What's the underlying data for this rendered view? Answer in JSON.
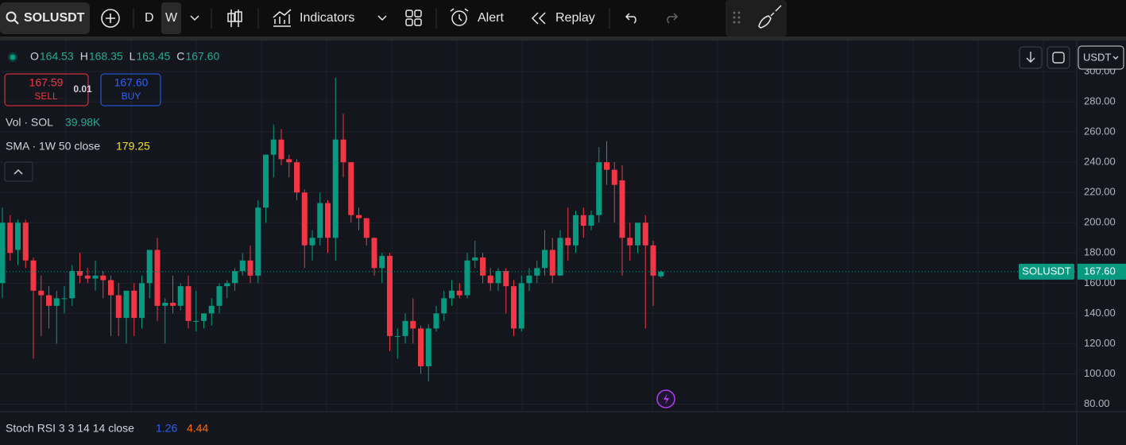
{
  "toolbar": {
    "symbol": "SOLUSDT",
    "intervals": [
      "D",
      "W"
    ],
    "indicators": "Indicators",
    "alert": "Alert",
    "replay": "Replay"
  },
  "legend": {
    "ohlc": [
      {
        "key": "O",
        "value": "164.53"
      },
      {
        "key": "H",
        "value": "168.35"
      },
      {
        "key": "L",
        "value": "163.45"
      },
      {
        "key": "C",
        "value": "167.60"
      }
    ],
    "sell_price": "167.59",
    "sell": "SELL",
    "quantity": "0.01",
    "buy_price": "167.60",
    "buy": "BUY",
    "volume_label": "Vol · SOL",
    "volume_value": "39.98K",
    "sma_label": "SMA · 1W 50 close",
    "sma_value": "179.25"
  },
  "stoch": {
    "label": "Stoch RSI 3 3 14 14 close",
    "k": "1.26",
    "d": "4.44"
  },
  "currency": "USDT",
  "chart_data": {
    "type": "candlestick",
    "symbol_label": "SOLUSDT",
    "up_color": "#089981",
    "down_color": "#f23645",
    "open": [
      160,
      200,
      182,
      200,
      175,
      155,
      152,
      145,
      150,
      150,
      168,
      165,
      163,
      165,
      162,
      152,
      137,
      155,
      137,
      160,
      182,
      145,
      147,
      145,
      158,
      135,
      135,
      140,
      145,
      158,
      160,
      168,
      175,
      165,
      210,
      245,
      255,
      242,
      240,
      220,
      185,
      190,
      213,
      190,
      255,
      240,
      205,
      203,
      190,
      170,
      178,
      125,
      125,
      135,
      130,
      105,
      130,
      140,
      150,
      155,
      152,
      175,
      177,
      165,
      160,
      168,
      158,
      130,
      160,
      165,
      170,
      182,
      165,
      190,
      185,
      205,
      198,
      205,
      240,
      235,
      228,
      190,
      185,
      200,
      185,
      164.53
    ],
    "high": [
      210,
      205,
      202,
      202,
      177,
      165,
      158,
      155,
      158,
      172,
      180,
      170,
      175,
      168,
      165,
      160,
      155,
      160,
      165,
      182,
      190,
      150,
      165,
      160,
      165,
      155,
      140,
      150,
      160,
      162,
      170,
      180,
      185,
      215,
      245,
      265,
      262,
      245,
      242,
      222,
      195,
      220,
      215,
      296,
      272,
      240,
      210,
      203,
      190,
      180,
      180,
      130,
      140,
      150,
      132,
      133,
      145,
      155,
      162,
      160,
      180,
      188,
      180,
      170,
      170,
      170,
      162,
      165,
      170,
      175,
      195,
      190,
      195,
      210,
      208,
      210,
      208,
      250,
      254,
      240,
      238,
      200,
      200,
      205,
      188,
      168.35
    ],
    "low": [
      150,
      175,
      172,
      170,
      110,
      125,
      130,
      120,
      140,
      145,
      160,
      160,
      155,
      150,
      125,
      125,
      120,
      125,
      130,
      150,
      135,
      120,
      140,
      142,
      130,
      128,
      130,
      132,
      140,
      150,
      155,
      165,
      160,
      160,
      200,
      230,
      238,
      230,
      215,
      170,
      175,
      185,
      180,
      175,
      230,
      200,
      195,
      185,
      165,
      160,
      115,
      110,
      120,
      120,
      100,
      95,
      128,
      135,
      145,
      150,
      150,
      170,
      160,
      155,
      155,
      140,
      125,
      128,
      155,
      160,
      165,
      160,
      165,
      175,
      180,
      190,
      195,
      200,
      225,
      200,
      165,
      175,
      180,
      130,
      145,
      163.45
    ],
    "close": [
      200,
      180,
      200,
      175,
      155,
      152,
      145,
      150,
      150,
      168,
      165,
      163,
      165,
      162,
      152,
      137,
      155,
      137,
      160,
      182,
      145,
      147,
      145,
      158,
      135,
      135,
      140,
      145,
      158,
      160,
      168,
      175,
      165,
      210,
      245,
      255,
      242,
      240,
      220,
      185,
      190,
      213,
      190,
      255,
      240,
      205,
      203,
      190,
      170,
      178,
      125,
      125,
      135,
      130,
      105,
      130,
      140,
      150,
      155,
      152,
      175,
      177,
      165,
      160,
      168,
      158,
      130,
      160,
      165,
      170,
      182,
      165,
      190,
      185,
      205,
      198,
      205,
      240,
      235,
      225,
      190,
      185,
      200,
      185,
      165,
      167.6
    ],
    "last_price": {
      "value": 167.6,
      "label": "167.60"
    },
    "ylim": [
      75,
      320
    ],
    "yticks": [
      {
        "value": 80,
        "label": "80.00"
      },
      {
        "value": 100,
        "label": "100.00"
      },
      {
        "value": 120,
        "label": "120.00"
      },
      {
        "value": 140,
        "label": "140.00"
      },
      {
        "value": 160,
        "label": "160.00"
      },
      {
        "value": 180,
        "label": "180.00"
      },
      {
        "value": 200,
        "label": "200.00"
      },
      {
        "value": 220,
        "label": "220.00"
      },
      {
        "value": 240,
        "label": "240.00"
      },
      {
        "value": 260,
        "label": "260.00"
      },
      {
        "value": 280,
        "label": "280.00"
      },
      {
        "value": 300,
        "label": "300.00"
      }
    ],
    "grid": true
  }
}
